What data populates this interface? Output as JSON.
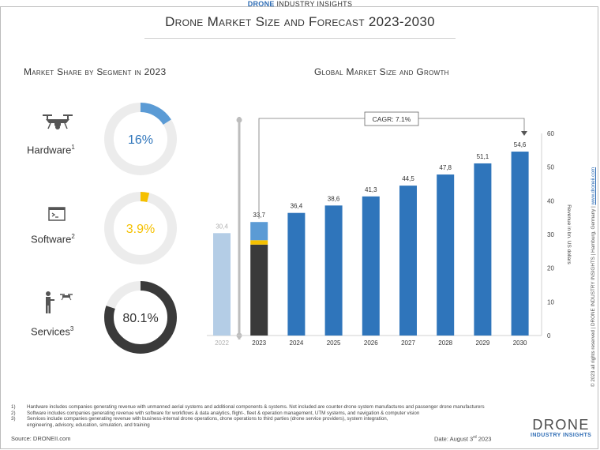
{
  "header": {
    "brand_highlight": "DRONE",
    "brand_rest": " INDUSTRY INSIGHTS",
    "title": "Drone Market Size and Forecast 2023-2030"
  },
  "left_panel": {
    "title": "Market Share by Segment in 2023",
    "segments": [
      {
        "label": "Hardware",
        "note": "1",
        "value_text": "16%",
        "percent": 16,
        "color": "#5b9bd5",
        "icon": "drone-icon"
      },
      {
        "label": "Software",
        "note": "2",
        "value_text": "3.9%",
        "percent": 3.9,
        "color": "#f5c000",
        "icon": "terminal-window-icon"
      },
      {
        "label": "Services",
        "note": "3",
        "value_text": "80.1%",
        "percent": 80.1,
        "color": "#3a3a3a",
        "icon": "pilot-with-drone-icon"
      }
    ]
  },
  "chart_data": {
    "type": "bar",
    "title": "Global Market Size and Growth",
    "ylabel": "Revenue in bn. US dollars",
    "ylim": [
      0,
      60
    ],
    "yticks": [
      0,
      10,
      20,
      30,
      40,
      50,
      60
    ],
    "categories": [
      "2022",
      "2023",
      "2024",
      "2025",
      "2026",
      "2027",
      "2028",
      "2029",
      "2030"
    ],
    "values": [
      30.4,
      33.7,
      36.4,
      38.6,
      41.3,
      44.5,
      47.8,
      51.1,
      54.6
    ],
    "value_labels": [
      "30,4",
      "33,7",
      "36,4",
      "38,6",
      "41,3",
      "44,5",
      "47,8",
      "51,1",
      "54,6"
    ],
    "stacked_2023": [
      {
        "name": "Services",
        "value": 26.99,
        "color": "#3a3a3a"
      },
      {
        "name": "Software",
        "value": 1.31,
        "color": "#f5c000"
      },
      {
        "name": "Hardware",
        "value": 5.4,
        "color": "#5b9bd5"
      }
    ],
    "colors": {
      "past": "#b4cde6",
      "forecast": "#2f75bb"
    },
    "annotation": "CAGR: 7.1%",
    "grid": false
  },
  "footnotes": [
    {
      "num": "1)",
      "text": "Hardware includes companies generating revenue with unmanned aerial systems and additional components & systems. Not included are counter-drone system manufactures and passenger drone manufacturers"
    },
    {
      "num": "2)",
      "text": "Software includes companies generating revenue with software for workflows & data analytics, flight-, fleet & operation management, UTM systems, and navigation & computer vision"
    },
    {
      "num": "3)",
      "text": "Services include companies generating revenue with business-internal drone operations, drone operations to third parties (drone service providers), system integration,"
    },
    {
      "num": "",
      "text": "engineering, advisory, education, simulation, and training"
    }
  ],
  "footer": {
    "source": "Source: DRONEII.com",
    "date_prefix": "Date: August 3",
    "date_sup": "rd",
    "date_suffix": " 2023",
    "logo_big": "DRONE",
    "logo_small": "INDUSTRY INSIGHTS",
    "side_text": "© 2023 all rights reserved  |  DRONE INDUSTRY INSIGHTS  |  Hamburg, Germany  |  ",
    "side_link": "www.droneii.com"
  }
}
